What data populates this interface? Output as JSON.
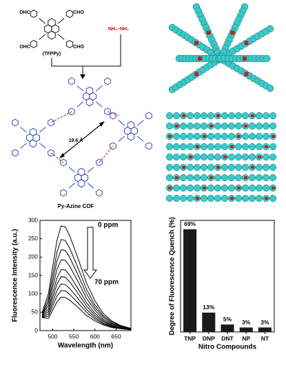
{
  "scheme": {
    "aldehyde_groups": [
      "OHC",
      "CHO",
      "OHC",
      "CHO"
    ],
    "monomer_label": "(TFPPy)",
    "linker": "NH₂–NH₂",
    "distance": "19.6 Å",
    "product": "Py-Azine COF"
  },
  "chart_data": [
    {
      "type": "line",
      "x_label": "Wavelength (nm)",
      "y_label": "Fluorescence Intensity (a.u.)",
      "annotations": [
        "0 ppm",
        "70 ppm"
      ],
      "color": "#000000",
      "x": [
        475,
        490,
        500,
        510,
        520,
        530,
        540,
        560,
        580,
        600,
        620,
        640,
        660,
        685
      ],
      "series": [
        {
          "values": [
            49,
            101,
            173,
            245,
            285,
            282,
            259,
            196,
            130,
            81,
            46,
            26,
            14,
            6
          ]
        },
        {
          "values": [
            45,
            88,
            150,
            213,
            248,
            245,
            225,
            170,
            113,
            70,
            40,
            23,
            13,
            5
          ]
        },
        {
          "values": [
            43,
            78,
            133,
            189,
            220,
            218,
            200,
            151,
            100,
            62,
            36,
            20,
            11,
            4
          ]
        },
        {
          "values": [
            42,
            68,
            117,
            166,
            193,
            191,
            176,
            133,
            88,
            55,
            31,
            18,
            10,
            4
          ]
        },
        {
          "values": [
            40,
            59,
            101,
            143,
            166,
            165,
            151,
            114,
            76,
            47,
            27,
            15,
            8,
            3
          ]
        },
        {
          "values": [
            38,
            52,
            89,
            126,
            147,
            145,
            133,
            101,
            67,
            41,
            24,
            13,
            7,
            3
          ]
        },
        {
          "values": [
            37,
            45,
            77,
            109,
            127,
            125,
            115,
            87,
            58,
            36,
            20,
            12,
            6,
            3
          ]
        },
        {
          "values": [
            36,
            39,
            66,
            94,
            109,
            108,
            99,
            75,
            50,
            31,
            18,
            10,
            6,
            2
          ]
        },
        {
          "values": [
            35,
            33,
            55,
            78,
            91,
            90,
            83,
            63,
            41,
            26,
            15,
            8,
            5,
            2
          ]
        }
      ],
      "xlim": [
        470,
        685
      ],
      "xticks": [
        500,
        550,
        600,
        650
      ],
      "ylim": [
        0,
        300
      ],
      "yticks": [
        0,
        50,
        100,
        150,
        200,
        250,
        300
      ]
    },
    {
      "type": "bar",
      "x_label": "Nitro Compounds",
      "y_label": "Degree of Fluorescence Quench (%)",
      "categories": [
        "TNP",
        "DNP",
        "DNT",
        "NP",
        "NT"
      ],
      "values": [
        69,
        13,
        5,
        3,
        3
      ],
      "value_labels": [
        "69%",
        "13%",
        "5%",
        "3%",
        "3%"
      ],
      "color": "#1a1a1a",
      "ylim": [
        0,
        75
      ]
    }
  ]
}
